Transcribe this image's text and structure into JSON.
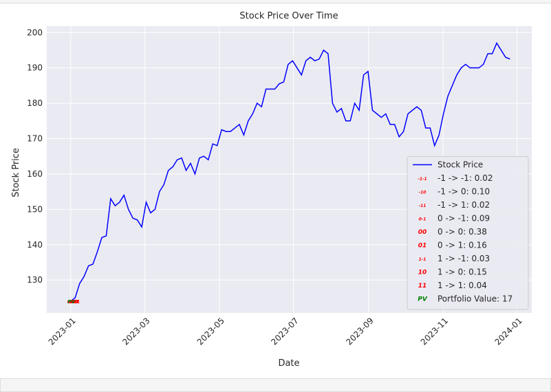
{
  "chart_data": {
    "type": "line",
    "title": "Stock Price Over Time",
    "xlabel": "Date",
    "ylabel": "Stock Price",
    "categories": [
      null,
      null,
      null,
      null,
      null,
      null,
      null,
      null,
      null,
      null,
      null,
      null,
      null,
      null,
      null,
      null,
      null,
      null,
      null,
      null,
      null,
      null,
      null,
      null,
      null,
      null,
      null,
      null,
      null,
      null,
      null,
      null,
      null,
      null,
      null,
      null,
      null,
      null,
      null,
      null,
      null,
      null,
      null,
      null,
      null,
      null,
      null,
      null,
      null,
      null,
      null,
      null,
      null,
      null,
      null,
      null,
      null,
      null,
      null,
      null,
      null,
      null,
      null,
      null,
      null,
      null,
      null,
      null,
      null,
      null,
      null,
      null,
      null,
      null,
      null,
      null,
      null,
      null,
      null,
      null,
      null,
      null,
      null,
      null,
      null,
      null,
      null,
      null,
      null,
      null,
      null,
      null,
      null,
      null,
      null,
      null,
      null,
      null,
      null,
      null
    ],
    "series": [
      {
        "name": "Stock Price",
        "color": "#0000ff",
        "values": [
          124,
          125,
          129,
          131,
          134,
          134.5,
          138,
          142,
          142.5,
          153,
          151,
          152,
          154,
          150,
          147.5,
          147,
          145,
          152,
          149,
          150,
          155,
          157,
          161,
          162,
          164,
          164.5,
          161,
          163,
          160,
          164.5,
          165,
          164,
          168.5,
          168,
          172.5,
          172,
          172,
          173,
          174,
          171,
          175,
          177,
          180,
          179,
          184,
          184,
          184,
          185.5,
          186,
          191,
          192,
          190,
          188,
          192,
          193,
          192,
          192.5,
          195,
          194,
          180,
          177.5,
          178.5,
          175,
          175,
          180,
          178,
          188,
          189,
          178,
          177,
          176,
          177,
          174,
          174,
          170.5,
          172,
          177,
          178,
          179,
          178,
          173,
          173,
          168,
          171,
          177,
          182,
          185,
          188,
          190,
          191,
          190,
          190,
          190,
          191,
          194,
          194,
          197,
          195,
          193,
          192.5
        ]
      }
    ],
    "markers": [
      {
        "name": "-1 -> -1: 0.02",
        "symbol": "-1-1",
        "color": "#ff0000",
        "x": 0.6,
        "y": 124
      },
      {
        "name": "-1 -> 0: 0.10",
        "symbol": "-10",
        "color": "#ff0000",
        "x": 0.3,
        "y": 124
      },
      {
        "name": "-1 -> 1: 0.02",
        "symbol": "-11",
        "color": "#ff0000",
        "x": 0.9,
        "y": 124
      },
      {
        "name": "0 -> -1: 0.09",
        "symbol": "0-1",
        "color": "#ff0000",
        "x": 0.2,
        "y": 124
      },
      {
        "name": "0 -> 0: 0.38",
        "symbol": "00",
        "color": "#ff0000",
        "x": 0,
        "y": 124
      },
      {
        "name": "0 -> 1: 0.16",
        "symbol": "01",
        "color": "#ff0000",
        "x": 0.5,
        "y": 124
      },
      {
        "name": "1 -> -1: 0.03",
        "symbol": "1-1",
        "color": "#ff0000",
        "x": 1.1,
        "y": 124
      },
      {
        "name": "1 -> 0: 0.15",
        "symbol": "10",
        "color": "#ff0000",
        "x": 0.8,
        "y": 124
      },
      {
        "name": "1 -> 1: 0.04",
        "symbol": "11",
        "color": "#ff0000",
        "x": 1.2,
        "y": 124
      },
      {
        "name": "Portfolio Value: 17",
        "symbol": "PV",
        "color": "#008000",
        "x": 0.1,
        "y": 124
      }
    ],
    "xlim": [
      -5.4,
      103.9
    ],
    "xticks": [
      {
        "value": 0,
        "label": "2023-01"
      },
      {
        "value": 16.7,
        "label": "2023-03"
      },
      {
        "value": 33.5,
        "label": "2023-05"
      },
      {
        "value": 50.2,
        "label": "2023-07"
      },
      {
        "value": 67.1,
        "label": "2023-09"
      },
      {
        "value": 83.9,
        "label": "2023-11"
      },
      {
        "value": 100.6,
        "label": "2024-01"
      }
    ],
    "ylim": [
      120.7,
      201.8
    ],
    "yticks": [
      130,
      140,
      150,
      160,
      170,
      180,
      190,
      200
    ],
    "grid": true,
    "legend": "lower right"
  }
}
